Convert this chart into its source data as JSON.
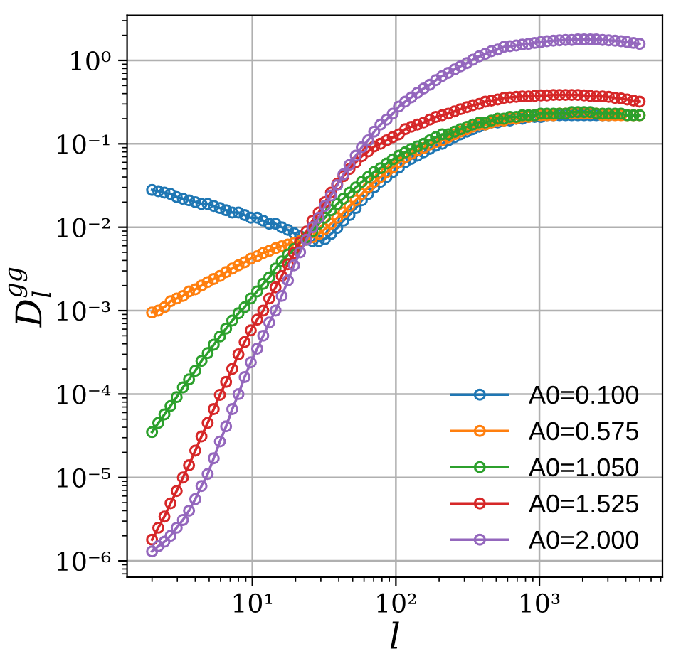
{
  "chart_data": {
    "type": "line",
    "xlabel": "l",
    "ylabel": "D$^{gg}$$_{l}$",
    "log": "xy",
    "grid": true,
    "legend": "bottom right",
    "marker": "circle",
    "line_style": "solid",
    "xlim": [
      1.34,
      7200
    ],
    "ylim": [
      6.4e-07,
      3.46
    ],
    "xticks": [
      {
        "value": 10,
        "label": "10¹"
      },
      {
        "value": 100,
        "label": "10²"
      },
      {
        "value": 1000,
        "label": "10³"
      }
    ],
    "yticks": [
      {
        "value": 1e-06,
        "label": "10⁻⁶"
      },
      {
        "value": 1e-05,
        "label": "10⁻⁵"
      },
      {
        "value": 0.0001,
        "label": "10⁻⁴"
      },
      {
        "value": 0.001,
        "label": "10⁻³"
      },
      {
        "value": 0.01,
        "label": "10⁻²"
      },
      {
        "value": 0.1,
        "label": "10⁻¹"
      },
      {
        "value": 1,
        "label": "10⁰"
      }
    ],
    "x": [
      2.0,
      2.21,
      2.44,
      2.69,
      2.97,
      3.28,
      3.62,
      4.0,
      4.42,
      4.88,
      5.38,
      5.94,
      6.56,
      7.24,
      8.0,
      8.83,
      9.75,
      10.8,
      11.9,
      13.1,
      14.5,
      16.0,
      17.7,
      19.5,
      21.5,
      23.8,
      26.2,
      29.0,
      32.0,
      35.3,
      39.0,
      43.1,
      47.5,
      52.5,
      57.9,
      64.0,
      70.6,
      78.0,
      86.1,
      95.1,
      105,
      116,
      128,
      141,
      156,
      172,
      190,
      210,
      232,
      256,
      282,
      312,
      344,
      380,
      420,
      463,
      512,
      565,
      624,
      689,
      760,
      839,
      927,
      1020,
      1130,
      1250,
      1380,
      1520,
      1680,
      1850,
      2050,
      2260,
      2490,
      2750,
      3040,
      3360,
      3710,
      4090,
      4520,
      4990
    ],
    "series": [
      {
        "name": "A0=0.100",
        "color": "#1f77b4",
        "values": [
          0.028,
          0.027,
          0.026,
          0.025,
          0.023,
          0.022,
          0.021,
          0.02,
          0.019,
          0.019,
          0.018,
          0.017,
          0.016,
          0.015,
          0.015,
          0.014,
          0.013,
          0.013,
          0.012,
          0.011,
          0.011,
          0.01,
          0.0093,
          0.0085,
          0.0078,
          0.0071,
          0.0068,
          0.0068,
          0.0072,
          0.0083,
          0.0098,
          0.012,
          0.014,
          0.017,
          0.021,
          0.025,
          0.03,
          0.035,
          0.04,
          0.046,
          0.052,
          0.06,
          0.066,
          0.072,
          0.079,
          0.087,
          0.095,
          0.1,
          0.11,
          0.12,
          0.13,
          0.14,
          0.15,
          0.16,
          0.17,
          0.18,
          0.18,
          0.19,
          0.19,
          0.2,
          0.2,
          0.21,
          0.21,
          0.21,
          0.22,
          0.22,
          0.22,
          0.22,
          0.22,
          0.22,
          0.22,
          0.22,
          0.22,
          0.22,
          0.22,
          null,
          null,
          null,
          null,
          null
        ]
      },
      {
        "name": "A0=0.575",
        "color": "#ff7f0e",
        "values": [
          0.00095,
          0.001,
          0.0011,
          0.0013,
          0.0014,
          0.0015,
          0.0017,
          0.0018,
          0.002,
          0.0022,
          0.0024,
          0.0026,
          0.0029,
          0.0032,
          0.0035,
          0.0038,
          0.0042,
          0.0045,
          0.0049,
          0.0052,
          0.0056,
          0.0059,
          0.0062,
          0.0065,
          0.0068,
          0.0071,
          0.0076,
          0.0083,
          0.0095,
          0.011,
          0.013,
          0.015,
          0.018,
          0.021,
          0.025,
          0.03,
          0.035,
          0.04,
          0.046,
          0.052,
          0.06,
          0.069,
          0.076,
          0.083,
          0.089,
          0.098,
          0.105,
          0.11,
          0.12,
          0.13,
          0.14,
          0.15,
          0.16,
          0.17,
          0.17,
          0.18,
          0.19,
          0.19,
          0.2,
          0.2,
          0.21,
          0.21,
          0.22,
          0.22,
          0.22,
          0.22,
          0.23,
          0.23,
          0.23,
          0.23,
          0.23,
          0.23,
          0.23,
          0.22,
          0.22,
          0.22,
          0.22,
          0.22,
          0.22,
          0.22
        ]
      },
      {
        "name": "A0=1.050",
        "color": "#2ca02c",
        "values": [
          3.5e-05,
          4.5e-05,
          5.7e-05,
          7.2e-05,
          9.2e-05,
          0.00012,
          0.00015,
          0.00019,
          0.00025,
          0.00031,
          0.00039,
          0.00049,
          0.00061,
          0.00076,
          0.00093,
          0.0011,
          0.0014,
          0.0017,
          0.0021,
          0.0025,
          0.0032,
          0.0039,
          0.0047,
          0.0055,
          0.0065,
          0.0076,
          0.0089,
          0.011,
          0.013,
          0.016,
          0.019,
          0.022,
          0.026,
          0.03,
          0.035,
          0.04,
          0.046,
          0.051,
          0.058,
          0.065,
          0.072,
          0.079,
          0.087,
          0.093,
          0.1,
          0.11,
          0.12,
          0.13,
          0.13,
          0.14,
          0.15,
          0.16,
          0.17,
          0.18,
          0.18,
          0.19,
          0.2,
          0.2,
          0.21,
          0.21,
          0.22,
          0.22,
          0.22,
          0.23,
          0.23,
          0.23,
          0.23,
          0.23,
          0.24,
          0.24,
          0.24,
          0.24,
          0.23,
          0.23,
          0.23,
          0.23,
          0.23,
          0.22,
          0.22,
          0.22
        ]
      },
      {
        "name": "A0=1.525",
        "color": "#d62728",
        "values": [
          1.8e-06,
          2.5e-06,
          3.4e-06,
          4.9e-06,
          6.9e-06,
          1e-05,
          1.4e-05,
          2.1e-05,
          3.1e-05,
          4.5e-05,
          6.6e-05,
          9.8e-05,
          0.00014,
          0.0002,
          0.0003,
          0.00042,
          0.00058,
          0.00078,
          0.001,
          0.0014,
          0.0019,
          0.0026,
          0.0036,
          0.0049,
          0.0066,
          0.0089,
          0.012,
          0.015,
          0.02,
          0.026,
          0.033,
          0.041,
          0.05,
          0.06,
          0.071,
          0.081,
          0.093,
          0.1,
          0.11,
          0.12,
          0.13,
          0.15,
          0.16,
          0.17,
          0.18,
          0.195,
          0.21,
          0.22,
          0.23,
          0.245,
          0.26,
          0.275,
          0.29,
          0.3,
          0.32,
          0.33,
          0.34,
          0.355,
          0.36,
          0.365,
          0.37,
          0.37,
          0.375,
          0.38,
          0.38,
          0.385,
          0.385,
          0.385,
          0.385,
          0.385,
          0.38,
          0.375,
          0.37,
          0.37,
          0.365,
          0.355,
          0.35,
          0.34,
          0.33,
          0.32
        ]
      },
      {
        "name": "A0=2.000",
        "color": "#9467bd",
        "values": [
          1.3e-06,
          1.5e-06,
          1.7e-06,
          2e-06,
          2.5e-06,
          3.1e-06,
          4e-06,
          5.5e-06,
          7.9e-06,
          1.1e-05,
          1.7e-05,
          2.7e-05,
          4.1e-05,
          6.6e-05,
          0.0001,
          0.00016,
          0.00024,
          0.00035,
          0.0005,
          0.00072,
          0.001,
          0.0015,
          0.0023,
          0.0035,
          0.005,
          0.0071,
          0.01,
          0.013,
          0.018,
          0.024,
          0.032,
          0.043,
          0.056,
          0.072,
          0.091,
          0.11,
          0.14,
          0.17,
          0.195,
          0.23,
          0.28,
          0.32,
          0.36,
          0.41,
          0.46,
          0.51,
          0.58,
          0.65,
          0.71,
          0.78,
          0.85,
          0.93,
          1.02,
          1.12,
          1.2,
          1.29,
          1.35,
          1.45,
          1.48,
          1.51,
          1.55,
          1.58,
          1.62,
          1.66,
          1.7,
          1.72,
          1.74,
          1.76,
          1.76,
          1.78,
          1.78,
          1.78,
          1.78,
          1.76,
          1.74,
          1.72,
          1.7,
          1.66,
          1.62,
          1.58
        ]
      }
    ]
  }
}
